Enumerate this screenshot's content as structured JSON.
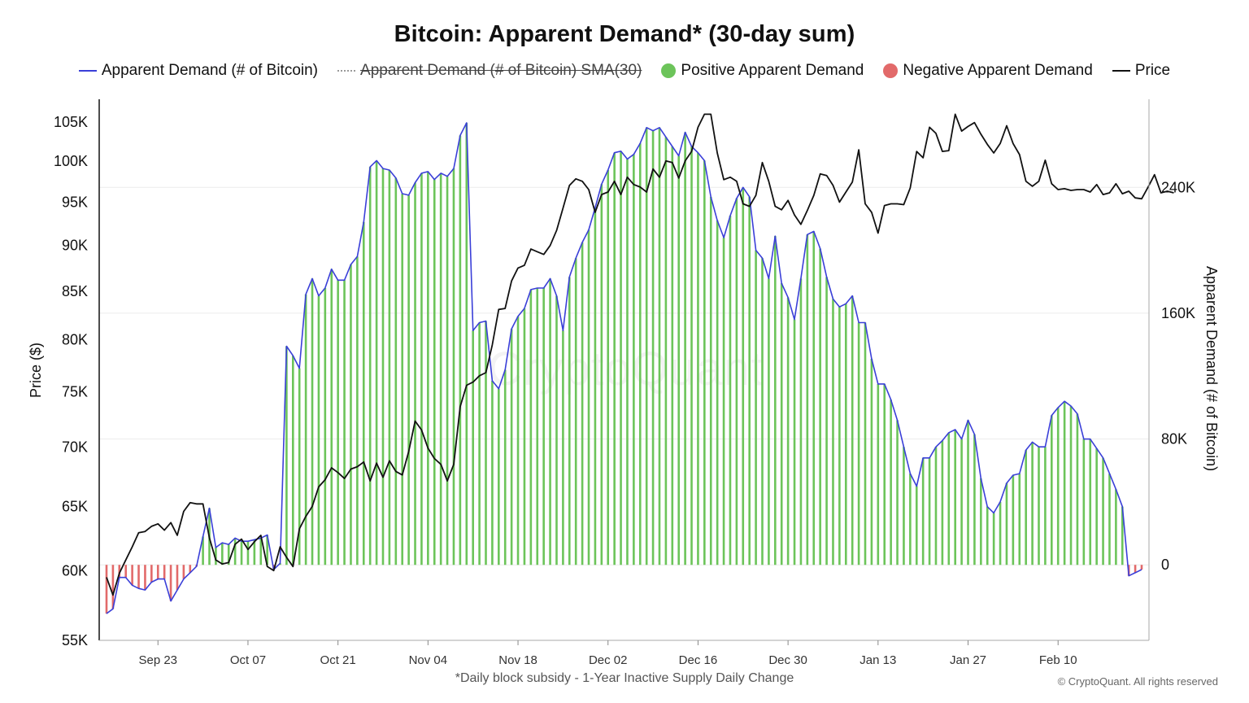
{
  "chart_data": {
    "type": "line",
    "title": "Bitcoin: Apparent Demand* (30-day sum)",
    "footnote": "*Daily block subsidy - 1-Year Inactive Supply Daily Change",
    "copyright": "© CryptoQuant. All rights reserved",
    "watermark": "CryptoQuant",
    "legend": [
      {
        "label": "Apparent Demand (# of Bitcoin)",
        "marker": "line",
        "color": "#3a3fd8",
        "struck": false
      },
      {
        "label": "Apparent Demand (# of Bitcoin)  SMA(30)",
        "marker": "dotted",
        "color": "#9a9a9a",
        "struck": true
      },
      {
        "label": "Positive Apparent Demand",
        "marker": "dot",
        "color": "#6cc45a",
        "struck": false
      },
      {
        "label": "Negative Apparent Demand",
        "marker": "dot",
        "color": "#e26a6a",
        "struck": false
      },
      {
        "label": "Price",
        "marker": "line",
        "color": "#111111",
        "struck": false
      }
    ],
    "x_ticks": [
      "Sep 23",
      "Oct 07",
      "Oct 21",
      "Nov 04",
      "Nov 18",
      "Dec 02",
      "Dec 16",
      "Dec 30",
      "Jan 13",
      "Jan 27",
      "Feb 10"
    ],
    "x_start": "2024-09-15",
    "left_axis": {
      "label": "Price ($)",
      "scale": "log",
      "range": [
        55000,
        108000
      ],
      "ticks": [
        55000,
        60000,
        65000,
        70000,
        75000,
        80000,
        85000,
        90000,
        95000,
        100000,
        105000
      ],
      "tick_labels": [
        "55K",
        "60K",
        "65K",
        "70K",
        "75K",
        "80K",
        "85K",
        "90K",
        "95K",
        "100K",
        "105K"
      ]
    },
    "right_axis": {
      "label": "Apparent Demand (# of Bitcoin)",
      "scale": "linear",
      "range": [
        -48000,
        296000
      ],
      "ticks": [
        0,
        80000,
        160000,
        240000
      ],
      "tick_labels": [
        "0",
        "80K",
        "160K",
        "240K"
      ]
    },
    "grid": true,
    "colors": {
      "positive": "#6cc45a",
      "negative": "#e26a6a",
      "demand_line": "#3a3fd8",
      "price_line": "#111111"
    },
    "series": [
      {
        "name": "Apparent Demand (# of Bitcoin)",
        "axis": "right",
        "values": [
          -31000,
          -28000,
          -8000,
          -8000,
          -13000,
          -15000,
          -16000,
          -11000,
          -9000,
          -9000,
          -23000,
          -16000,
          -9000,
          -5000,
          -1000,
          18000,
          36000,
          11000,
          14000,
          13000,
          17000,
          15000,
          15000,
          16000,
          17000,
          19000,
          -3000,
          1000,
          139000,
          133000,
          125000,
          172000,
          182000,
          171000,
          176000,
          188000,
          181000,
          181000,
          191000,
          196000,
          218000,
          253000,
          257000,
          252000,
          251000,
          246000,
          236000,
          235000,
          243000,
          249000,
          250000,
          245000,
          249000,
          247000,
          252000,
          273000,
          281000,
          149000,
          154000,
          155000,
          117000,
          112000,
          124000,
          150000,
          158000,
          163000,
          175000,
          176000,
          176000,
          182000,
          171000,
          149000,
          183000,
          195000,
          205000,
          213000,
          227000,
          242000,
          251000,
          262000,
          263000,
          258000,
          261000,
          268000,
          278000,
          276000,
          278000,
          272000,
          266000,
          260000,
          275000,
          266000,
          262000,
          257000,
          234000,
          219000,
          208000,
          222000,
          233000,
          240000,
          234000,
          200000,
          195000,
          182000,
          209000,
          179000,
          170000,
          156000,
          182000,
          210000,
          212000,
          201000,
          183000,
          169000,
          164000,
          166000,
          171000,
          154000,
          154000,
          131000,
          115000,
          115000,
          105000,
          92000,
          75000,
          58000,
          50000,
          68000,
          68000,
          75000,
          79000,
          84000,
          86000,
          80000,
          92000,
          83000,
          55000,
          37000,
          33000,
          40000,
          52000,
          57000,
          58000,
          73000,
          78000,
          75000,
          75000,
          95000,
          100000,
          104000,
          101000,
          96000,
          80000,
          80000,
          74000,
          68000,
          58000,
          48000,
          37000,
          -7000,
          -5000,
          -3000
        ]
      },
      {
        "name": "Price",
        "axis": "left",
        "values": [
          59500,
          58200,
          59800,
          60800,
          61800,
          62900,
          63000,
          63400,
          63600,
          63100,
          63700,
          62700,
          64600,
          65300,
          65200,
          65200,
          62500,
          60800,
          60500,
          60600,
          62000,
          62400,
          61600,
          62200,
          62700,
          60300,
          60000,
          61800,
          61000,
          60300,
          63200,
          64200,
          65000,
          66600,
          67200,
          68200,
          67800,
          67300,
          68100,
          68300,
          68700,
          67100,
          68600,
          67400,
          68800,
          67900,
          67600,
          69600,
          72300,
          71500,
          69900,
          69000,
          68500,
          67100,
          68500,
          73600,
          75600,
          75900,
          76500,
          76800,
          79500,
          83100,
          83200,
          86100,
          87500,
          87800,
          89600,
          89300,
          89000,
          90000,
          91700,
          94300,
          97000,
          97800,
          97500,
          96500,
          93800,
          95900,
          96200,
          97500,
          95900,
          98000,
          97100,
          96800,
          96200,
          99000,
          98000,
          100000,
          99800,
          97900,
          100000,
          101200,
          104300,
          106000,
          106000,
          101000,
          97700,
          98000,
          97500,
          94800,
          94500,
          95800,
          99800,
          97500,
          94500,
          94100,
          95200,
          93500,
          92400,
          94000,
          95800,
          98400,
          98200,
          97000,
          95000,
          96200,
          97400,
          101400,
          94800,
          93800,
          91400,
          94600,
          94800,
          94800,
          94700,
          96700,
          101200,
          100400,
          104300,
          103500,
          101200,
          101300,
          106000,
          103800,
          104400,
          104900,
          103400,
          102100,
          101000,
          102200,
          104500,
          102200,
          100800,
          97500,
          96900,
          97500,
          100100,
          97200,
          96500,
          96600,
          96400,
          96500,
          96500,
          96200,
          97100,
          95900,
          96100,
          97200,
          96000,
          96300,
          95500,
          95400,
          96800,
          98300,
          96100,
          96300,
          96100
        ]
      }
    ]
  }
}
